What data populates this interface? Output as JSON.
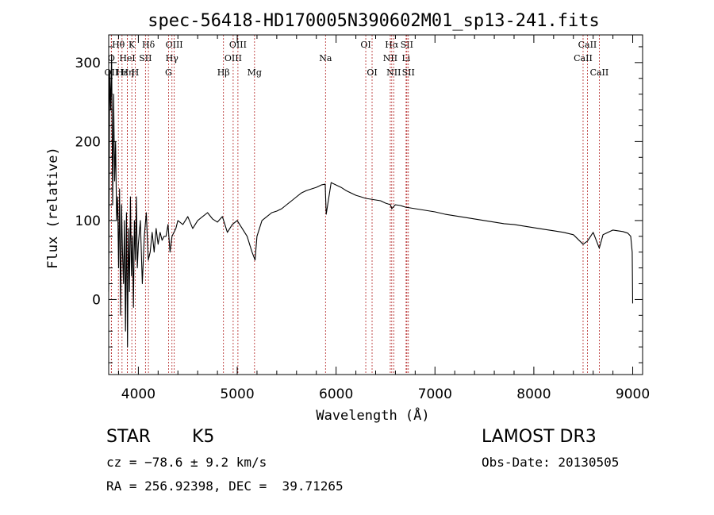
{
  "chart_data": {
    "type": "line",
    "title": "spec-56418-HD170005N390602M01_sp13-241.fits",
    "xlabel": "Wavelength (Å)",
    "ylabel": "Flux (relative)",
    "xlim": [
      3700,
      9100
    ],
    "ylim": [
      -95,
      335
    ],
    "x_ticks": [
      4000,
      5000,
      6000,
      7000,
      8000,
      9000
    ],
    "y_ticks": [
      0,
      100,
      200,
      300
    ],
    "x_tick_labels": [
      "4000",
      "5000",
      "6000",
      "7000",
      "8000",
      "9000"
    ],
    "y_tick_labels": [
      "0",
      "100",
      "200",
      "300"
    ],
    "series": [
      {
        "name": "flux",
        "x": [
          3700,
          3710,
          3720,
          3730,
          3740,
          3750,
          3760,
          3770,
          3780,
          3790,
          3800,
          3810,
          3820,
          3830,
          3840,
          3850,
          3860,
          3870,
          3880,
          3890,
          3900,
          3910,
          3920,
          3930,
          3940,
          3950,
          3960,
          3970,
          3980,
          3990,
          4000,
          4020,
          4040,
          4060,
          4080,
          4100,
          4120,
          4140,
          4160,
          4180,
          4200,
          4220,
          4240,
          4260,
          4280,
          4300,
          4320,
          4340,
          4360,
          4380,
          4400,
          4450,
          4500,
          4550,
          4600,
          4650,
          4700,
          4750,
          4800,
          4850,
          4900,
          4950,
          5000,
          5050,
          5100,
          5150,
          5180,
          5200,
          5250,
          5300,
          5350,
          5400,
          5450,
          5500,
          5550,
          5600,
          5650,
          5700,
          5750,
          5800,
          5850,
          5890,
          5900,
          5950,
          6000,
          6050,
          6100,
          6150,
          6200,
          6250,
          6300,
          6350,
          6400,
          6450,
          6500,
          6550,
          6563,
          6600,
          6650,
          6700,
          6750,
          6800,
          6900,
          7000,
          7100,
          7200,
          7300,
          7400,
          7500,
          7600,
          7700,
          7800,
          7900,
          8000,
          8100,
          8200,
          8300,
          8400,
          8498,
          8542,
          8600,
          8662,
          8700,
          8800,
          8900,
          8950,
          8980,
          8995,
          9000
        ],
        "values": [
          10,
          290,
          240,
          310,
          120,
          260,
          150,
          200,
          100,
          130,
          40,
          140,
          -20,
          120,
          60,
          20,
          100,
          -40,
          110,
          -60,
          90,
          10,
          130,
          30,
          80,
          -10,
          100,
          50,
          130,
          40,
          70,
          100,
          20,
          80,
          110,
          50,
          60,
          85,
          60,
          90,
          70,
          85,
          75,
          80,
          80,
          95,
          60,
          80,
          85,
          90,
          100,
          95,
          105,
          90,
          100,
          105,
          110,
          102,
          98,
          105,
          85,
          95,
          100,
          90,
          80,
          60,
          50,
          80,
          100,
          105,
          110,
          112,
          115,
          120,
          125,
          130,
          135,
          138,
          140,
          142,
          145,
          146,
          108,
          148,
          145,
          142,
          138,
          135,
          132,
          130,
          128,
          127,
          126,
          125,
          122,
          120,
          115,
          120,
          119,
          117,
          116,
          115,
          113,
          111,
          108,
          106,
          104,
          102,
          100,
          98,
          96,
          95,
          93,
          91,
          89,
          87,
          85,
          82,
          70,
          74,
          85,
          65,
          82,
          88,
          86,
          84,
          80,
          60,
          -5
        ]
      }
    ],
    "spectral_lines": [
      {
        "label": "Hθ",
        "x": 3798,
        "row": 1
      },
      {
        "label": "K",
        "x": 3934,
        "row": 1
      },
      {
        "label": "Hδ",
        "x": 4102,
        "row": 1
      },
      {
        "label": "OIII",
        "x": 4363,
        "row": 1
      },
      {
        "label": "OIII",
        "x": 5007,
        "row": 1
      },
      {
        "label": "OI",
        "x": 6300,
        "row": 1
      },
      {
        "label": "Hα",
        "x": 6563,
        "row": 1
      },
      {
        "label": "SII",
        "x": 6716,
        "row": 1
      },
      {
        "label": "CaII",
        "x": 8542,
        "row": 1
      },
      {
        "label": "O",
        "x": 3727,
        "row": 2
      },
      {
        "label": "HeI",
        "x": 3889,
        "row": 2
      },
      {
        "label": "SII",
        "x": 4072,
        "row": 2
      },
      {
        "label": "Hγ",
        "x": 4340,
        "row": 2
      },
      {
        "label": "OIII",
        "x": 4959,
        "row": 2
      },
      {
        "label": "Na",
        "x": 5893,
        "row": 2
      },
      {
        "label": "NII",
        "x": 6548,
        "row": 2
      },
      {
        "label": "Li",
        "x": 6708,
        "row": 2
      },
      {
        "label": "CaII",
        "x": 8498,
        "row": 2
      },
      {
        "label": "OII",
        "x": 3727,
        "row": 3
      },
      {
        "label": "Hε",
        "x": 3835,
        "row": 3
      },
      {
        "label": "Hη",
        "x": 3889,
        "row": 3
      },
      {
        "label": "H",
        "x": 3968,
        "row": 3
      },
      {
        "label": "G",
        "x": 4305,
        "row": 3
      },
      {
        "label": "Hβ",
        "x": 4861,
        "row": 3
      },
      {
        "label": "Mg",
        "x": 5175,
        "row": 3
      },
      {
        "label": "OI",
        "x": 6364,
        "row": 3
      },
      {
        "label": "NII",
        "x": 6583,
        "row": 3
      },
      {
        "label": "SII",
        "x": 6731,
        "row": 3
      },
      {
        "label": "CaII",
        "x": 8662,
        "row": 3
      }
    ]
  },
  "info": {
    "object_class": "STAR",
    "subclass": "K5",
    "survey": "LAMOST DR3",
    "cz": "cz = −78.6 ± 9.2 km/s",
    "obs_date": "Obs-Date: 20130505",
    "coords": "RA = 256.92398, DEC =  39.71265"
  }
}
